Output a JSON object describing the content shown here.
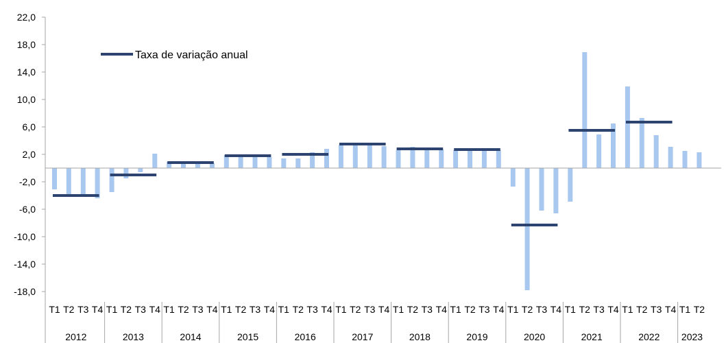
{
  "chart_data": {
    "type": "bar",
    "ylim": [
      -18.0,
      22.0
    ],
    "yticks": [
      "22,0",
      "18,0",
      "14,0",
      "10,0",
      "6,0",
      "2,0",
      "-2,0",
      "-6,0",
      "-10,0",
      "-14,0",
      "-18,0"
    ],
    "grid": false,
    "legend_position": "top-left",
    "colors": {
      "bars": "#a9c8f0",
      "annual": "#2e4470",
      "axis": "#a6a6a6"
    },
    "quarter_labels": [
      "T1",
      "T2",
      "T3",
      "T4"
    ],
    "years": [
      {
        "year": "2012",
        "quarters": [
          -3.1,
          -4.0,
          -4.1,
          -4.4
        ],
        "annual": -4.0
      },
      {
        "year": "2013",
        "quarters": [
          -3.5,
          -1.5,
          -0.6,
          2.1
        ],
        "annual": -1.0
      },
      {
        "year": "2014",
        "quarters": [
          0.9,
          0.9,
          0.8,
          0.7
        ],
        "annual": 0.8
      },
      {
        "year": "2015",
        "quarters": [
          1.9,
          1.8,
          1.8,
          1.6
        ],
        "annual": 1.8
      },
      {
        "year": "2016",
        "quarters": [
          1.4,
          1.4,
          2.3,
          2.8
        ],
        "annual": 2.0
      },
      {
        "year": "2017",
        "quarters": [
          3.4,
          3.6,
          3.5,
          3.2
        ],
        "annual": 3.5
      },
      {
        "year": "2018",
        "quarters": [
          2.6,
          3.1,
          2.7,
          2.7
        ],
        "annual": 2.8
      },
      {
        "year": "2019",
        "quarters": [
          2.6,
          2.6,
          2.6,
          2.6
        ],
        "annual": 2.7
      },
      {
        "year": "2020",
        "quarters": [
          -2.7,
          -17.8,
          -6.2,
          -6.6
        ],
        "annual": -8.3
      },
      {
        "year": "2021",
        "quarters": [
          -4.9,
          16.9,
          4.9,
          6.5
        ],
        "annual": 5.5
      },
      {
        "year": "2022",
        "quarters": [
          11.9,
          7.3,
          4.8,
          3.1
        ],
        "annual": 6.7
      },
      {
        "year": "2023",
        "quarters": [
          2.5,
          2.3
        ],
        "annual": null
      }
    ],
    "legend": {
      "label": "Taxa de variação anual"
    }
  }
}
